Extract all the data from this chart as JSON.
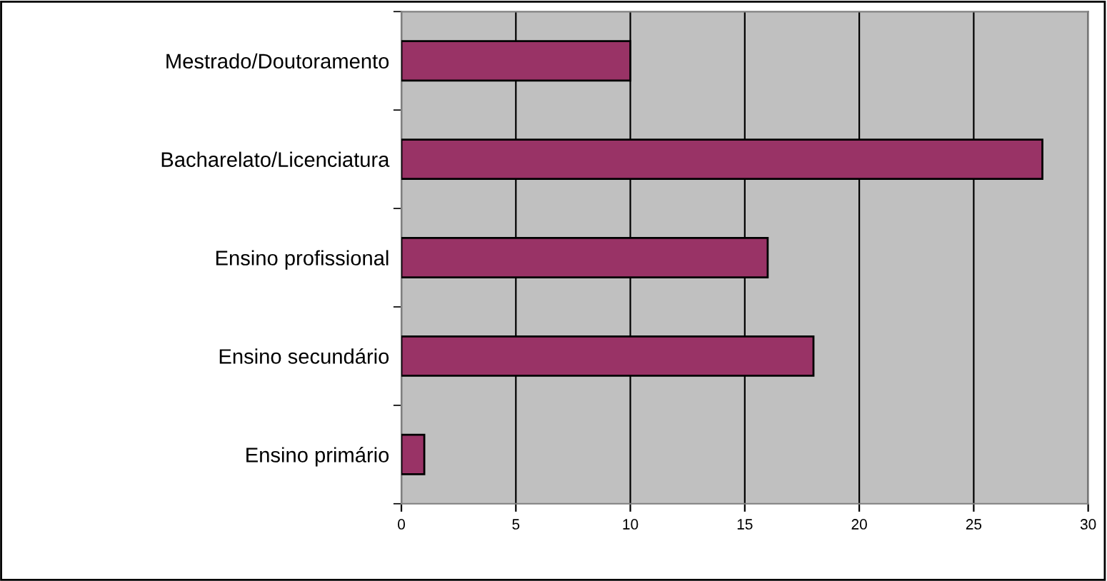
{
  "chart_data": {
    "type": "bar",
    "orientation": "horizontal",
    "categories": [
      "Mestrado/Doutoramento",
      "Bacharelato/Licenciatura",
      "Ensino profissional",
      "Ensino secundário",
      "Ensino primário"
    ],
    "values": [
      10,
      28,
      16,
      18,
      1
    ],
    "color": "#993366",
    "xlim": [
      0,
      30
    ],
    "xticks": [
      0,
      5,
      10,
      15,
      20,
      25,
      30
    ],
    "grid": "x"
  }
}
